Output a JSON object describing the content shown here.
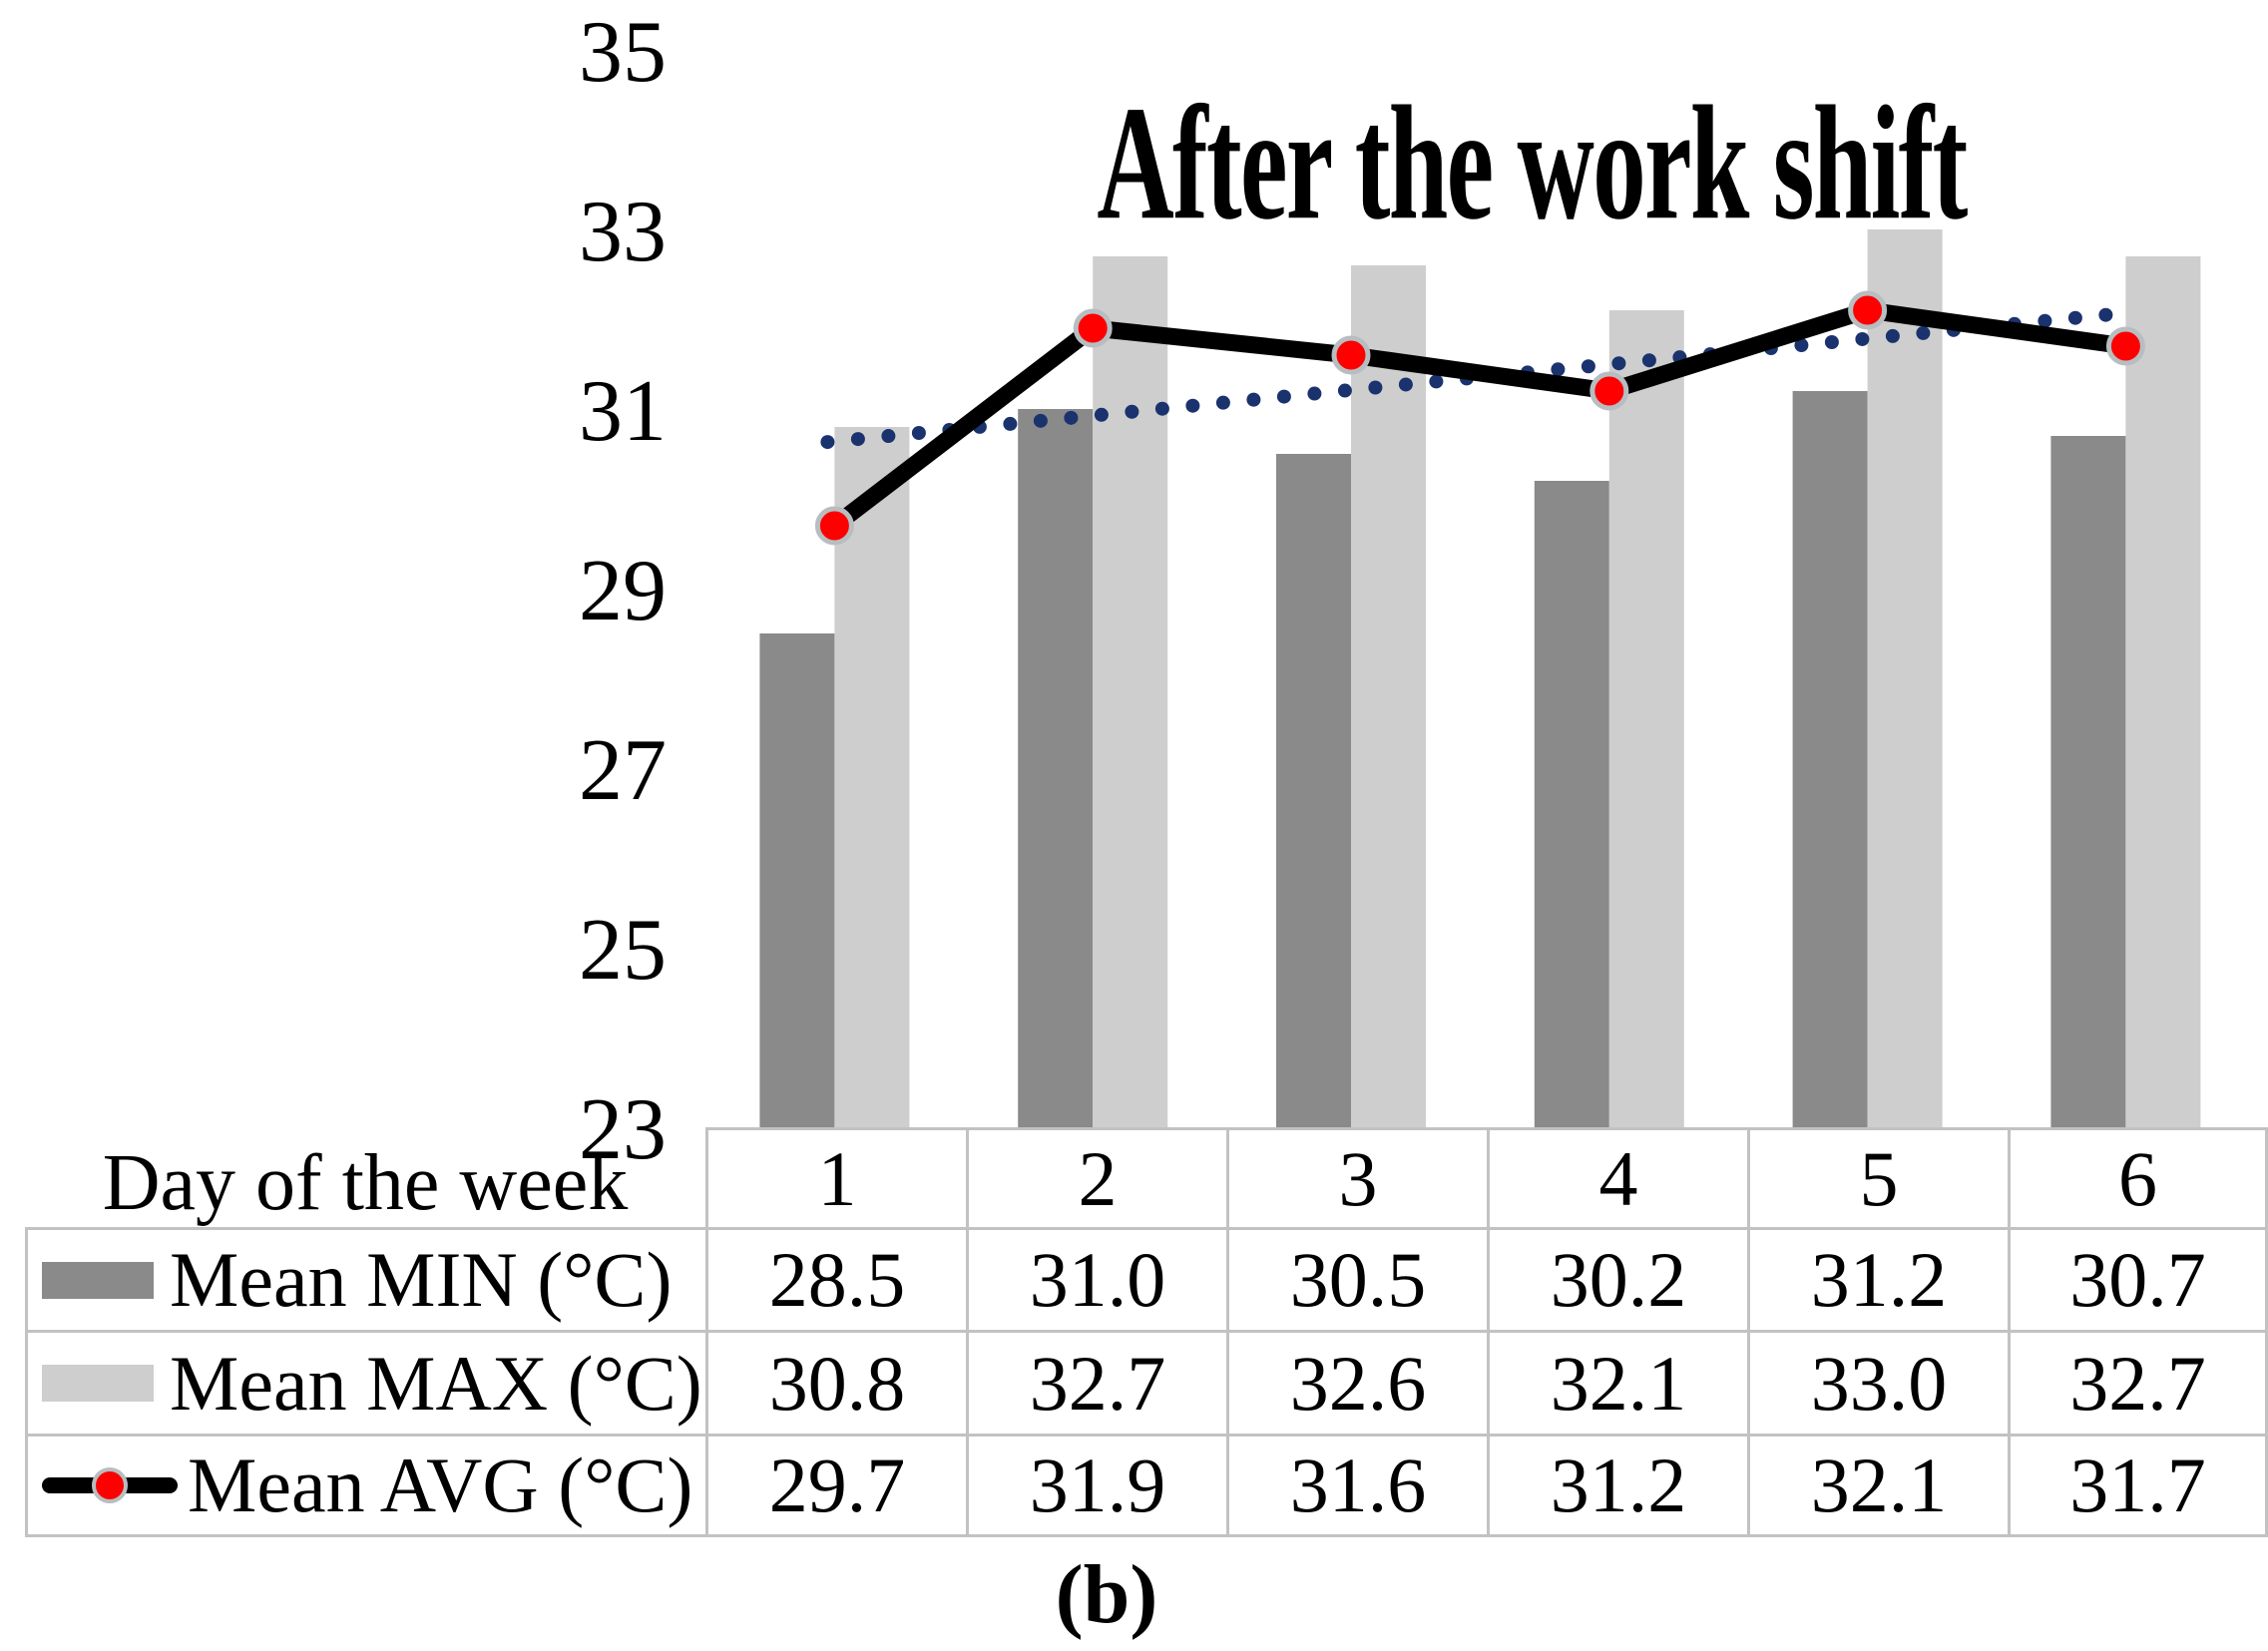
{
  "figure": {
    "caption": "(b)"
  },
  "colors": {
    "min_bar": "#8a8a8a",
    "max_bar": "#cecece",
    "avg_line": "#000000",
    "marker_fill": "#ff0000",
    "marker_ring": "#b7bec2",
    "trendline": "#1a336e",
    "table_border": "#c2c2c2",
    "text": "#000000",
    "background": "#ffffff"
  },
  "chart_data": {
    "type": "bar+line",
    "title": "After the work shift",
    "xlabel": "Day of the week",
    "ylabel": "",
    "categories": [
      "1",
      "2",
      "3",
      "4",
      "5",
      "6"
    ],
    "series": [
      {
        "name": "Mean MIN (°C)",
        "type": "bar",
        "color": "#8a8a8a",
        "values": [
          28.5,
          31.0,
          30.5,
          30.2,
          31.2,
          30.7
        ]
      },
      {
        "name": "Mean MAX (°C)",
        "type": "bar",
        "color": "#cecece",
        "values": [
          30.8,
          32.7,
          32.6,
          32.1,
          33.0,
          32.7
        ]
      },
      {
        "name": "Mean AVG (°C)",
        "type": "line",
        "color": "#000000",
        "marker": "red-circle",
        "values": [
          29.7,
          31.9,
          31.6,
          31.2,
          32.1,
          31.7
        ]
      }
    ],
    "trendline": {
      "of_series": "Mean AVG (°C)",
      "style": "dotted",
      "color": "#1a336e",
      "start_value": 30.64,
      "end_value": 32.07
    },
    "ylim": [
      23,
      35
    ],
    "yticks": [
      35,
      33,
      31,
      29,
      27,
      25,
      23
    ],
    "grid": false,
    "legend_position": "table-left"
  },
  "table": {
    "row_header": "Day of the week",
    "columns": [
      "1",
      "2",
      "3",
      "4",
      "5",
      "6"
    ],
    "rows": [
      {
        "label": "Mean MIN (°C)",
        "values": [
          "28.5",
          "31.0",
          "30.5",
          "30.2",
          "31.2",
          "30.7"
        ]
      },
      {
        "label": "Mean MAX (°C)",
        "values": [
          "30.8",
          "32.7",
          "32.6",
          "32.1",
          "33.0",
          "32.7"
        ]
      },
      {
        "label": "Mean AVG (°C)",
        "values": [
          "29.7",
          "31.9",
          "31.6",
          "31.2",
          "32.1",
          "31.7"
        ]
      }
    ]
  }
}
